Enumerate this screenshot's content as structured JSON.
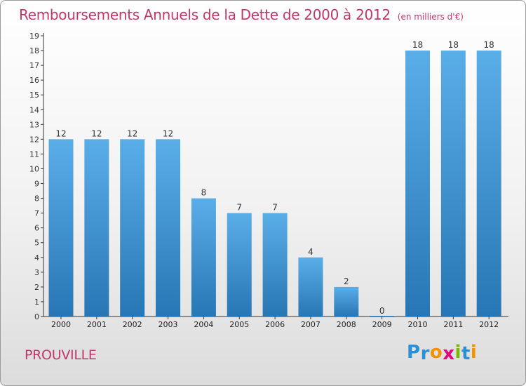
{
  "header": {
    "title": "Remboursements Annuels de la Dette de 2000 à 2012",
    "unit": "(en milliers d'€)"
  },
  "footer": {
    "commune": "PROUVILLE",
    "logo": [
      "P",
      "r",
      "o",
      "x",
      "i",
      "t",
      "i"
    ]
  },
  "colors": {
    "accent": "#c0386a",
    "bar_top": "#5aaee8",
    "bar_bottom": "#2776b5",
    "logo": [
      "#2a8fd6",
      "#2a8fd6",
      "#f39200",
      "#e4007c",
      "#7ab800",
      "#2a8fd6",
      "#f39200"
    ]
  },
  "chart_data": {
    "type": "bar",
    "title": "Remboursements Annuels de la Dette de 2000 à 2012",
    "xlabel": "",
    "ylabel": "",
    "categories": [
      "2000",
      "2001",
      "2002",
      "2003",
      "2004",
      "2005",
      "2006",
      "2007",
      "2008",
      "2009",
      "2010",
      "2011",
      "2012"
    ],
    "values": [
      12,
      12,
      12,
      12,
      8,
      7,
      7,
      4,
      2,
      0,
      18,
      18,
      18
    ],
    "ylim": [
      0,
      19
    ],
    "yticks": [
      "0",
      "1",
      "2",
      "3",
      "4",
      "5",
      "6",
      "7",
      "8",
      "9",
      "10",
      "11",
      "12",
      "13",
      "14",
      "15",
      "16",
      "17",
      "18",
      "19"
    ],
    "grid": false
  }
}
